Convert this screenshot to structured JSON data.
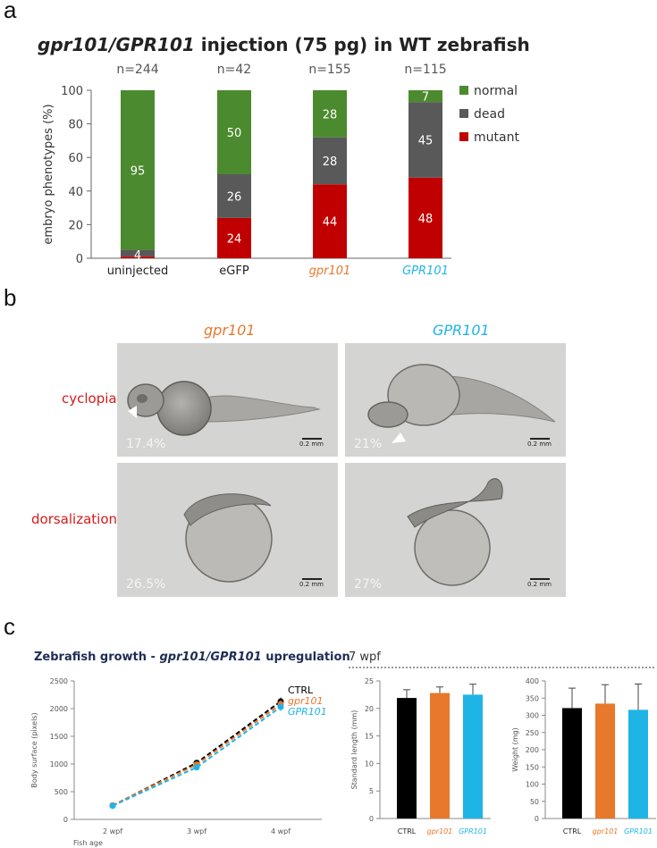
{
  "panels": {
    "a": "a",
    "b": "b",
    "c": "c"
  },
  "panel_a": {
    "title_italic": "gpr101/GPR101",
    "title_rest": " injection (75 pg) in WT zebrafish"
  },
  "panel_b": {
    "columns": [
      "gpr101",
      "GPR101"
    ],
    "rows": [
      "cyclopia",
      "dorsalization"
    ],
    "percentages": [
      "17.4%",
      "21%",
      "26.5%",
      "27%"
    ],
    "scale_label": "0.2 mm"
  },
  "panel_c": {
    "title_a": "Zebrafish growth - ",
    "title_b": "gpr101/GPR101",
    "title_c": " upregulation",
    "wpf_title": "7 wpf"
  },
  "chart_data": [
    {
      "type": "bar",
      "stacked": true,
      "categories": [
        "uninjected",
        "eGFP",
        "gpr101",
        "GPR101"
      ],
      "sample_sizes": [
        "n=244",
        "n=42",
        "n=155",
        "n=115"
      ],
      "series": [
        {
          "name": "normal",
          "values": [
            95,
            50,
            28,
            7
          ],
          "color": "#4b8a2e"
        },
        {
          "name": "dead",
          "values": [
            4,
            26,
            28,
            45
          ],
          "color": "#595959"
        },
        {
          "name": "mutant",
          "values": [
            1,
            24,
            44,
            48
          ],
          "color": "#c00000"
        }
      ],
      "data_labels": [
        "95",
        "4",
        "50",
        "26",
        "24",
        "28",
        "28",
        "44",
        "7",
        "45",
        "48"
      ],
      "ylabel": "embryo phenotypes (%)",
      "ylim": [
        0,
        100
      ],
      "yticks": [
        "0",
        "20",
        "40",
        "60",
        "80",
        "100"
      ],
      "category_colors": [
        "#222222",
        "#222222",
        "#e8782c",
        "#1fb4e6"
      ],
      "legend_position": "right"
    },
    {
      "type": "line",
      "x": [
        "2 wpf",
        "3 wpf",
        "4 wpf"
      ],
      "series": [
        {
          "name": "CTRL",
          "values": [
            250,
            1020,
            2130
          ],
          "color": "#000000"
        },
        {
          "name": "gpr101",
          "values": [
            255,
            990,
            2080
          ],
          "color": "#e8782c"
        },
        {
          "name": "GPR101",
          "values": [
            245,
            940,
            2030
          ],
          "color": "#1fb4e6"
        }
      ],
      "ylabel": "Body surface (pixels)",
      "xlabel": "Fish age",
      "ylim": [
        0,
        2500
      ],
      "yticks": [
        "0",
        "500",
        "1000",
        "1500",
        "2000",
        "2500"
      ],
      "legend_position": "right"
    },
    {
      "type": "bar",
      "categories": [
        "CTRL",
        "gpr101",
        "GPR101"
      ],
      "values": [
        21.9,
        22.8,
        22.5
      ],
      "errors": [
        1.5,
        1.1,
        1.9
      ],
      "colors": [
        "#000000",
        "#e8782c",
        "#1fb4e6"
      ],
      "ylabel": "Standard length (mm)",
      "ylim": [
        0,
        25
      ],
      "yticks": [
        "0",
        "5",
        "10",
        "15",
        "20",
        "25"
      ]
    },
    {
      "type": "bar",
      "categories": [
        "CTRL",
        "gpr101",
        "GPR101"
      ],
      "values": [
        321,
        334,
        316
      ],
      "errors": [
        58,
        55,
        75
      ],
      "colors": [
        "#000000",
        "#e8782c",
        "#1fb4e6"
      ],
      "ylabel": "Weight (mg)",
      "ylim": [
        0,
        400
      ],
      "yticks": [
        "0",
        "50",
        "100",
        "150",
        "200",
        "250",
        "300",
        "350",
        "400"
      ]
    }
  ]
}
